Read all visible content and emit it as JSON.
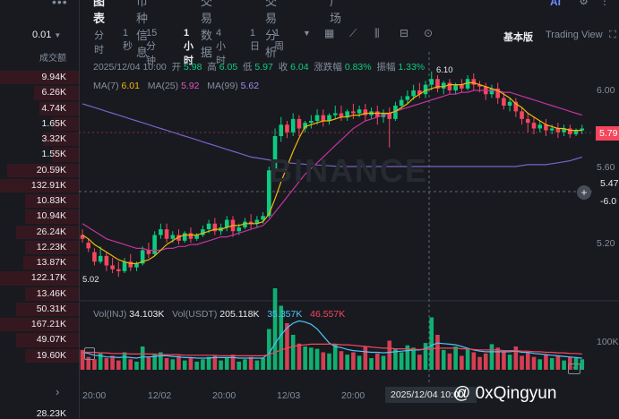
{
  "left_panel": {
    "dots": "•••",
    "precision": "0.01",
    "column_header": "成交额",
    "volumes": [
      "9.94K",
      "6.26K",
      "4.74K",
      "1.65K",
      "3.32K",
      "1.55K",
      "20.59K",
      "132.91K",
      "10.83K",
      "10.94K",
      "26.24K",
      "12.23K",
      "13.87K",
      "122.17K",
      "13.46K",
      "50.31K",
      "167.21K",
      "49.07K",
      "19.60K"
    ],
    "bottom_value": "28.23K"
  },
  "tabs": [
    "图表",
    "币种信息",
    "交易数据",
    "交易分析",
    "广场"
  ],
  "toolbar": {
    "intervals": [
      "分时",
      "1秒",
      "15分钟",
      "1小时",
      "4小时",
      "1日",
      "1周"
    ],
    "active_interval": "1小时",
    "mode_basic": "基本版",
    "mode_tv": "Trading View"
  },
  "top_icons": {
    "ai": "AI"
  },
  "ohlc": {
    "time": "2025/12/04 10:00",
    "open_label": "开",
    "open": "5.98",
    "high_label": "高",
    "high": "6.05",
    "low_label": "低",
    "low": "5.97",
    "close_label": "收",
    "close": "6.04",
    "change_label": "涨跌幅",
    "change": "0.83%",
    "amp_label": "振幅",
    "amp": "1.33%"
  },
  "ma": {
    "label": "MA(7)",
    "ma7": "6.01",
    "ma25_label": "MA(25)",
    "ma25": "5.92",
    "ma99_label": "MA(99)",
    "ma99": "5.62"
  },
  "vol": {
    "inj_label": "Vol(INJ)",
    "inj": "34.103K",
    "usdt_label": "Vol(USDT)",
    "usdt": "205.118K",
    "v1": "35.357K",
    "v2": "46.557K"
  },
  "y_axis": [
    "6.00",
    "5.60",
    "5.20"
  ],
  "vol_axis": "100K",
  "price_tag": "5.79",
  "crosshair_price": "5.47",
  "crosshair_sub": "-6.0",
  "high_marker": "6.10",
  "low_marker": "5.02",
  "x_axis": [
    "20:00",
    "12/02",
    "20:00",
    "12/03",
    "20:00"
  ],
  "x_crosshair": "2025/12/04 10:00",
  "watermark_text": "@ 0xQingyun",
  "binance_wm": "BINANCE",
  "colors": {
    "up": "#0ecb81",
    "down": "#f6465d",
    "ma7": "#f0b90b",
    "ma25": "#c7339c",
    "ma99": "#7b61c8",
    "bg": "#181a20"
  },
  "series": {
    "candles": [
      [
        5.24,
        5.27,
        5.22,
        5.2
      ],
      [
        5.2,
        5.22,
        5.17,
        5.15
      ],
      [
        5.15,
        5.17,
        5.1,
        5.08
      ],
      [
        5.1,
        5.18,
        5.13,
        5.09
      ],
      [
        5.13,
        5.15,
        5.08,
        5.05
      ],
      [
        5.08,
        5.12,
        5.06,
        5.04
      ],
      [
        5.06,
        5.1,
        5.05,
        5.02
      ],
      [
        5.05,
        5.12,
        5.1,
        5.04
      ],
      [
        5.1,
        5.14,
        5.07,
        5.05
      ],
      [
        5.07,
        5.1,
        5.09,
        5.05
      ],
      [
        5.09,
        5.18,
        5.16,
        5.08
      ],
      [
        5.16,
        5.2,
        5.14,
        5.12
      ],
      [
        5.14,
        5.26,
        5.24,
        5.13
      ],
      [
        5.24,
        5.3,
        5.27,
        5.22
      ],
      [
        5.27,
        5.3,
        5.22,
        5.2
      ],
      [
        5.22,
        5.26,
        5.24,
        5.2
      ],
      [
        5.24,
        5.27,
        5.21,
        5.19
      ],
      [
        5.21,
        5.26,
        5.25,
        5.2
      ],
      [
        5.25,
        5.28,
        5.22,
        5.2
      ],
      [
        5.22,
        5.25,
        5.24,
        5.21
      ],
      [
        5.24,
        5.29,
        5.27,
        5.23
      ],
      [
        5.27,
        5.32,
        5.3,
        5.25
      ],
      [
        5.3,
        5.33,
        5.26,
        5.24
      ],
      [
        5.26,
        5.3,
        5.28,
        5.24
      ],
      [
        5.28,
        5.34,
        5.32,
        5.26
      ],
      [
        5.32,
        5.34,
        5.26,
        5.23
      ],
      [
        5.26,
        5.3,
        5.28,
        5.24
      ],
      [
        5.28,
        5.33,
        5.31,
        5.27
      ],
      [
        5.31,
        5.35,
        5.3,
        5.27
      ],
      [
        5.3,
        5.34,
        5.32,
        5.28
      ],
      [
        5.32,
        5.36,
        5.34,
        5.3
      ],
      [
        5.34,
        5.6,
        5.58,
        5.33
      ],
      [
        5.58,
        5.8,
        5.76,
        5.56
      ],
      [
        5.76,
        5.86,
        5.82,
        5.73
      ],
      [
        5.82,
        5.84,
        5.78,
        5.75
      ],
      [
        5.78,
        5.88,
        5.85,
        5.76
      ],
      [
        5.85,
        5.87,
        5.8,
        5.76
      ],
      [
        5.8,
        5.84,
        5.83,
        5.78
      ],
      [
        5.83,
        5.87,
        5.84,
        5.8
      ],
      [
        5.84,
        5.9,
        5.87,
        5.82
      ],
      [
        5.87,
        5.9,
        5.84,
        5.81
      ],
      [
        5.84,
        5.88,
        5.87,
        5.82
      ],
      [
        5.87,
        5.92,
        5.88,
        5.85
      ],
      [
        5.88,
        5.92,
        5.86,
        5.84
      ],
      [
        5.86,
        5.9,
        5.89,
        5.84
      ],
      [
        5.89,
        5.93,
        5.88,
        5.85
      ],
      [
        5.88,
        5.92,
        5.9,
        5.86
      ],
      [
        5.9,
        5.93,
        5.87,
        5.84
      ],
      [
        5.87,
        5.91,
        5.89,
        5.85
      ],
      [
        5.89,
        5.92,
        5.86,
        5.82
      ],
      [
        5.86,
        5.9,
        5.88,
        5.83
      ],
      [
        5.88,
        5.91,
        5.85,
        5.7
      ],
      [
        5.85,
        5.94,
        5.92,
        5.84
      ],
      [
        5.92,
        5.97,
        5.95,
        5.9
      ],
      [
        5.95,
        6.0,
        5.97,
        5.93
      ],
      [
        5.97,
        6.03,
        6.0,
        5.95
      ],
      [
        6.0,
        6.04,
        5.98,
        5.96
      ],
      [
        5.98,
        6.05,
        6.03,
        5.96
      ],
      [
        6.03,
        6.1,
        6.06,
        6.0
      ],
      [
        6.06,
        6.08,
        6.01,
        5.99
      ],
      [
        6.01,
        6.05,
        6.04,
        5.98
      ],
      [
        6.04,
        6.06,
        6.0,
        5.98
      ],
      [
        6.0,
        6.04,
        6.03,
        5.98
      ],
      [
        6.03,
        6.06,
        6.01,
        5.99
      ],
      [
        6.01,
        6.08,
        6.06,
        6.0
      ],
      [
        6.06,
        6.09,
        6.03,
        6.0
      ],
      [
        6.03,
        6.05,
        6.02,
        5.99
      ],
      [
        6.02,
        6.04,
        5.98,
        5.95
      ],
      [
        5.98,
        6.03,
        6.01,
        5.96
      ],
      [
        6.01,
        6.04,
        5.96,
        5.93
      ],
      [
        5.96,
        5.99,
        5.92,
        5.9
      ],
      [
        5.92,
        5.96,
        5.94,
        5.89
      ],
      [
        5.94,
        5.96,
        5.89,
        5.86
      ],
      [
        5.89,
        5.91,
        5.85,
        5.82
      ],
      [
        5.85,
        5.88,
        5.83,
        5.78
      ],
      [
        5.83,
        5.86,
        5.8,
        5.77
      ],
      [
        5.8,
        5.84,
        5.82,
        5.78
      ],
      [
        5.82,
        5.85,
        5.79,
        5.76
      ],
      [
        5.79,
        5.82,
        5.8,
        5.77
      ],
      [
        5.8,
        5.83,
        5.78,
        5.75
      ],
      [
        5.78,
        5.82,
        5.8,
        5.76
      ],
      [
        5.8,
        5.82,
        5.77,
        5.75
      ],
      [
        5.77,
        5.8,
        5.79,
        5.76
      ],
      [
        5.79,
        5.82,
        5.8,
        5.77
      ]
    ],
    "volumes": [
      34,
      22,
      18,
      28,
      20,
      24,
      16,
      30,
      18,
      14,
      40,
      22,
      26,
      30,
      20,
      18,
      24,
      16,
      20,
      14,
      18,
      22,
      24,
      16,
      20,
      26,
      14,
      18,
      22,
      16,
      20,
      70,
      140,
      110,
      80,
      60,
      45,
      40,
      38,
      36,
      30,
      28,
      44,
      32,
      26,
      30,
      24,
      40,
      20,
      28,
      24,
      50,
      36,
      30,
      42,
      38,
      26,
      46,
      90,
      60,
      34,
      28,
      40,
      24,
      36,
      30,
      22,
      28,
      44,
      38,
      30,
      26,
      40,
      24,
      30,
      22,
      18,
      26,
      20,
      24,
      16,
      22,
      20,
      18
    ],
    "ma7": [
      5.24,
      5.22,
      5.19,
      5.17,
      5.15,
      5.13,
      5.11,
      5.1,
      5.09,
      5.09,
      5.1,
      5.11,
      5.13,
      5.16,
      5.19,
      5.21,
      5.23,
      5.24,
      5.24,
      5.24,
      5.25,
      5.26,
      5.27,
      5.27,
      5.28,
      5.29,
      5.29,
      5.3,
      5.3,
      5.3,
      5.31,
      5.35,
      5.43,
      5.52,
      5.6,
      5.68,
      5.75,
      5.81,
      5.82,
      5.83,
      5.84,
      5.84,
      5.85,
      5.86,
      5.86,
      5.87,
      5.87,
      5.88,
      5.88,
      5.88,
      5.88,
      5.88,
      5.89,
      5.91,
      5.93,
      5.96,
      5.98,
      6.0,
      6.01,
      6.02,
      6.02,
      6.03,
      6.03,
      6.03,
      6.04,
      6.04,
      6.03,
      6.02,
      6.01,
      6.0,
      5.98,
      5.96,
      5.93,
      5.91,
      5.88,
      5.86,
      5.84,
      5.82,
      5.81,
      5.8,
      5.8,
      5.79,
      5.79,
      5.79
    ],
    "ma25": [
      5.3,
      5.28,
      5.26,
      5.24,
      5.22,
      5.21,
      5.2,
      5.19,
      5.18,
      5.17,
      5.17,
      5.16,
      5.16,
      5.16,
      5.17,
      5.17,
      5.18,
      5.18,
      5.19,
      5.19,
      5.2,
      5.21,
      5.22,
      5.23,
      5.23,
      5.24,
      5.25,
      5.26,
      5.27,
      5.28,
      5.29,
      5.32,
      5.36,
      5.4,
      5.44,
      5.48,
      5.52,
      5.56,
      5.59,
      5.62,
      5.65,
      5.68,
      5.71,
      5.74,
      5.77,
      5.8,
      5.82,
      5.84,
      5.85,
      5.86,
      5.87,
      5.88,
      5.89,
      5.9,
      5.91,
      5.92,
      5.93,
      5.94,
      5.95,
      5.96,
      5.97,
      5.98,
      5.98,
      5.99,
      5.99,
      6.0,
      6.0,
      6.0,
      6.0,
      6.0,
      5.99,
      5.99,
      5.98,
      5.97,
      5.96,
      5.95,
      5.94,
      5.93,
      5.92,
      5.91,
      5.9,
      5.89,
      5.88,
      5.87
    ],
    "ma99": [
      5.93,
      5.92,
      5.91,
      5.9,
      5.89,
      5.88,
      5.87,
      5.86,
      5.85,
      5.84,
      5.83,
      5.82,
      5.81,
      5.8,
      5.79,
      5.78,
      5.77,
      5.76,
      5.75,
      5.74,
      5.73,
      5.72,
      5.71,
      5.7,
      5.69,
      5.68,
      5.67,
      5.66,
      5.65,
      5.645,
      5.64,
      5.635,
      5.63,
      5.625,
      5.62,
      5.617,
      5.615,
      5.612,
      5.61,
      5.608,
      5.606,
      5.604,
      5.602,
      5.6,
      5.6,
      5.6,
      5.6,
      5.6,
      5.6,
      5.6,
      5.6,
      5.6,
      5.6,
      5.6,
      5.6,
      5.6,
      5.6,
      5.6,
      5.6,
      5.6,
      5.6,
      5.6,
      5.6,
      5.6,
      5.6,
      5.6,
      5.6,
      5.6,
      5.6,
      5.6,
      5.6,
      5.6,
      5.6,
      5.605,
      5.61,
      5.61,
      5.61,
      5.61,
      5.615,
      5.62,
      5.625,
      5.63,
      5.64,
      5.65
    ],
    "vol_ma1": [
      30,
      28,
      25,
      24,
      22,
      22,
      21,
      22,
      21,
      20,
      22,
      22,
      23,
      24,
      24,
      23,
      22,
      21,
      21,
      20,
      20,
      20,
      21,
      21,
      21,
      21,
      20,
      20,
      20,
      20,
      20,
      28,
      45,
      60,
      72,
      80,
      84,
      82,
      78,
      70,
      58,
      46,
      40,
      38,
      35,
      33,
      32,
      31,
      30,
      30,
      29,
      30,
      31,
      32,
      33,
      34,
      34,
      36,
      42,
      46,
      45,
      44,
      43,
      40,
      37,
      34,
      32,
      31,
      31,
      31,
      31,
      31,
      32,
      30,
      30,
      28,
      27,
      26,
      25,
      24,
      23,
      22,
      21,
      20
    ],
    "vol_ma2": [
      30,
      30,
      30,
      29,
      29,
      28,
      28,
      28,
      27,
      27,
      27,
      27,
      27,
      26,
      26,
      26,
      26,
      25,
      25,
      25,
      25,
      25,
      25,
      24,
      24,
      24,
      24,
      24,
      24,
      24,
      24,
      26,
      30,
      34,
      37,
      40,
      42,
      43,
      44,
      44,
      44,
      44,
      44,
      43,
      43,
      42,
      41,
      40,
      39,
      38,
      37,
      37,
      36,
      36,
      36,
      35,
      35,
      35,
      36,
      37,
      37,
      37,
      37,
      36,
      36,
      35,
      34,
      34,
      34,
      34,
      33,
      33,
      33,
      32,
      32,
      31,
      31,
      30,
      30,
      29,
      29,
      28,
      28,
      27
    ]
  }
}
